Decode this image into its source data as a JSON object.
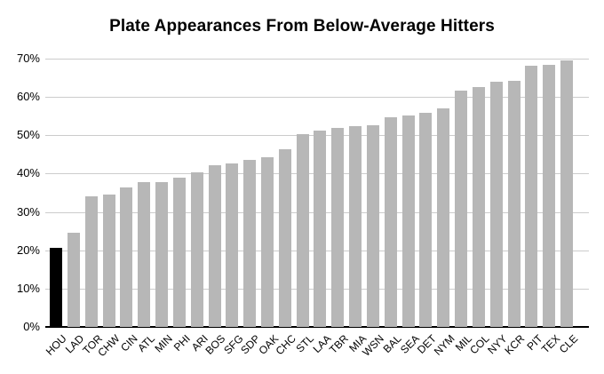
{
  "chart_data": {
    "type": "bar",
    "title": "Plate Appearances From Below-Average Hitters",
    "xlabel": "",
    "ylabel": "",
    "categories": [
      "HOU",
      "LAD",
      "TOR",
      "CHW",
      "CIN",
      "ATL",
      "MIN",
      "PHI",
      "ARI",
      "BOS",
      "SFG",
      "SDP",
      "OAK",
      "CHC",
      "STL",
      "LAA",
      "TBR",
      "MIA",
      "WSN",
      "BAL",
      "SEA",
      "DET",
      "NYM",
      "MIL",
      "COL",
      "NYY",
      "KCR",
      "PIT",
      "TEX",
      "CLE"
    ],
    "values": [
      20.7,
      24.6,
      34.0,
      34.5,
      36.3,
      37.8,
      37.8,
      39.0,
      40.3,
      42.2,
      42.6,
      43.6,
      44.3,
      46.4,
      50.2,
      51.3,
      52.0,
      52.4,
      52.7,
      54.7,
      55.2,
      55.9,
      57.0,
      61.6,
      62.6,
      64.0,
      64.2,
      68.2,
      68.5,
      69.5
    ],
    "ylim": [
      0,
      70
    ],
    "ytick_step": 10,
    "yticks": [
      "0%",
      "10%",
      "20%",
      "30%",
      "40%",
      "50%",
      "60%",
      "70%"
    ],
    "grid": true,
    "legend": false,
    "bar_default_color": "#b7b7b7",
    "highlight": {
      "category": "HOU",
      "color": "#000000"
    }
  },
  "styles": {
    "background_color": "#ffffff",
    "gridline_color": "#cccccc",
    "axis_line_color": "#000000",
    "text_color": "#000000"
  }
}
